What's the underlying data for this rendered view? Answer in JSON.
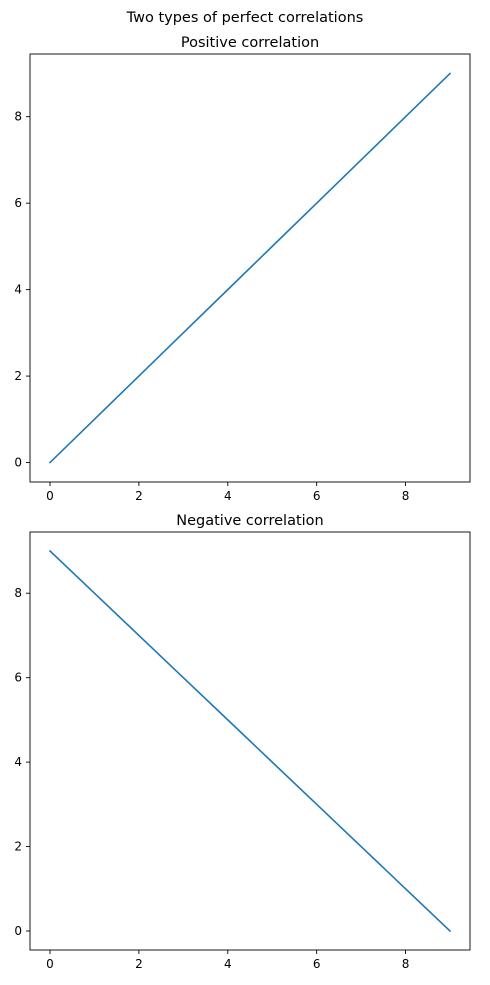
{
  "figure": {
    "suptitle": "Two types of perfect correlations"
  },
  "chart_data": [
    {
      "type": "line",
      "title": "Positive correlation",
      "xlabel": "",
      "ylabel": "",
      "x": [
        0,
        1,
        2,
        3,
        4,
        5,
        6,
        7,
        8,
        9
      ],
      "series": [
        {
          "values": [
            0,
            1,
            2,
            3,
            4,
            5,
            6,
            7,
            8,
            9
          ],
          "color": "#1f77b4"
        }
      ],
      "xlim": [
        -0.45,
        9.45
      ],
      "ylim": [
        -0.45,
        9.45
      ],
      "xticks": [
        0,
        2,
        4,
        6,
        8
      ],
      "yticks": [
        0,
        2,
        4,
        6,
        8
      ],
      "xtick_labels": [
        "0",
        "2",
        "4",
        "6",
        "8"
      ],
      "ytick_labels": [
        "0",
        "2",
        "4",
        "6",
        "8"
      ],
      "grid": false,
      "legend": false
    },
    {
      "type": "line",
      "title": "Negative correlation",
      "xlabel": "",
      "ylabel": "",
      "x": [
        0,
        1,
        2,
        3,
        4,
        5,
        6,
        7,
        8,
        9
      ],
      "series": [
        {
          "values": [
            9,
            8,
            7,
            6,
            5,
            4,
            3,
            2,
            1,
            0
          ],
          "color": "#1f77b4"
        }
      ],
      "xlim": [
        -0.45,
        9.45
      ],
      "ylim": [
        -0.45,
        9.45
      ],
      "xticks": [
        0,
        2,
        4,
        6,
        8
      ],
      "yticks": [
        0,
        2,
        4,
        6,
        8
      ],
      "xtick_labels": [
        "0",
        "2",
        "4",
        "6",
        "8"
      ],
      "ytick_labels": [
        "0",
        "2",
        "4",
        "6",
        "8"
      ],
      "grid": false,
      "legend": false
    }
  ]
}
